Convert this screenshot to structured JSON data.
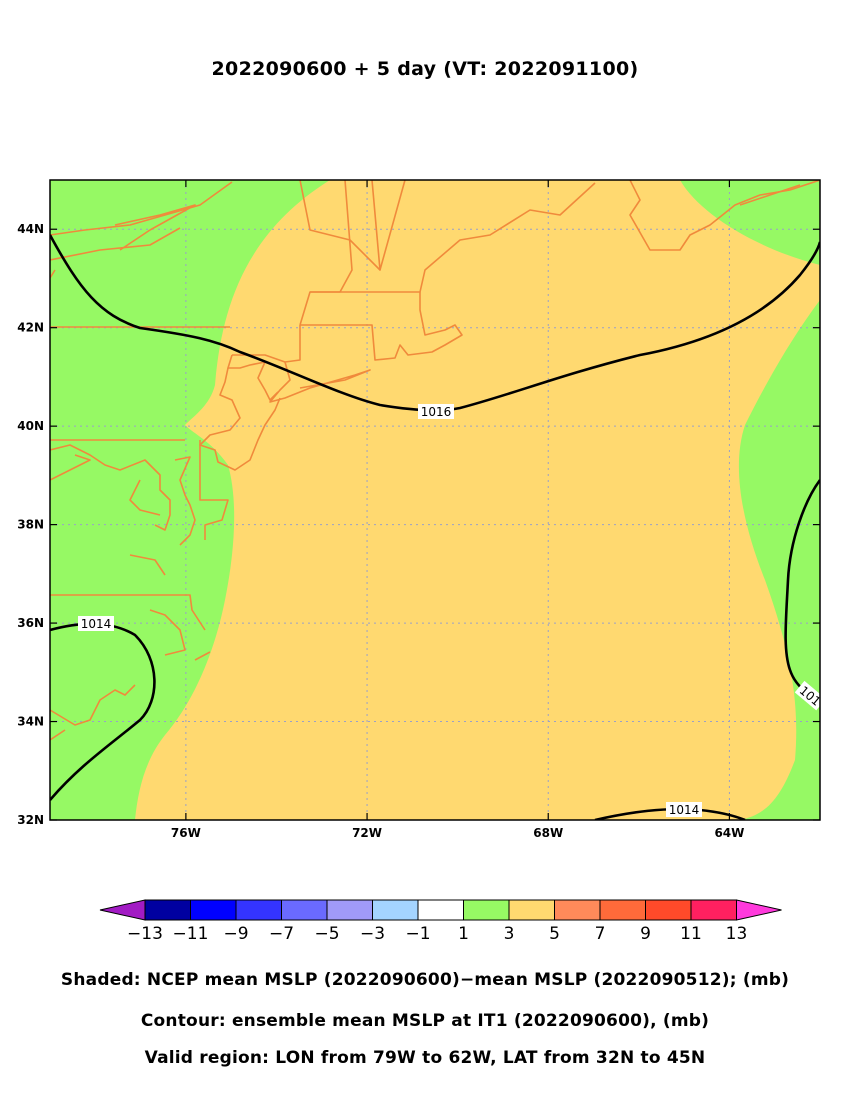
{
  "title": "2022090600 + 5 day (VT: 2022091100)",
  "map": {
    "lon_range": [
      -79,
      -62
    ],
    "lat_range": [
      32,
      45
    ],
    "lon_ticks": [
      -76,
      -72,
      -68,
      -64
    ],
    "lon_tick_labels": [
      "76W",
      "72W",
      "68W",
      "64W"
    ],
    "lat_ticks": [
      32,
      34,
      36,
      38,
      40,
      42,
      44
    ],
    "lat_tick_labels": [
      "32N",
      "34N",
      "36N",
      "38N",
      "40N",
      "42N",
      "44N"
    ],
    "contour_labels": [
      "1016",
      "1014",
      "1014",
      "101"
    ],
    "colors": {
      "shade_1_to_3": "#96f964",
      "shade_3_to_5": "#ffd970",
      "coastline": "#f08a3c",
      "contour": "#000000",
      "grid": "#9aa0c8"
    }
  },
  "colorbar": {
    "tick_labels": [
      "−13",
      "−11",
      "−9",
      "−7",
      "−5",
      "−3",
      "−1",
      "1",
      "3",
      "5",
      "7",
      "9",
      "11",
      "13"
    ],
    "colors": [
      "#a21bc4",
      "#0000a0",
      "#0000ff",
      "#3434ff",
      "#6a6aff",
      "#a09af8",
      "#a4d4ff",
      "#ffffff",
      "#96f964",
      "#ffd970",
      "#ff8a5a",
      "#ff6a3a",
      "#ff4a2a",
      "#ff2060",
      "#ff3adc"
    ]
  },
  "captions": {
    "shaded": "Shaded: NCEP mean MSLP (2022090600)−mean MSLP (2022090512); (mb)",
    "contour": "Contour: ensemble mean MSLP at IT1 (2022090600), (mb)",
    "region": "Valid region: LON from 79W to 62W, LAT from 32N to 45N"
  }
}
